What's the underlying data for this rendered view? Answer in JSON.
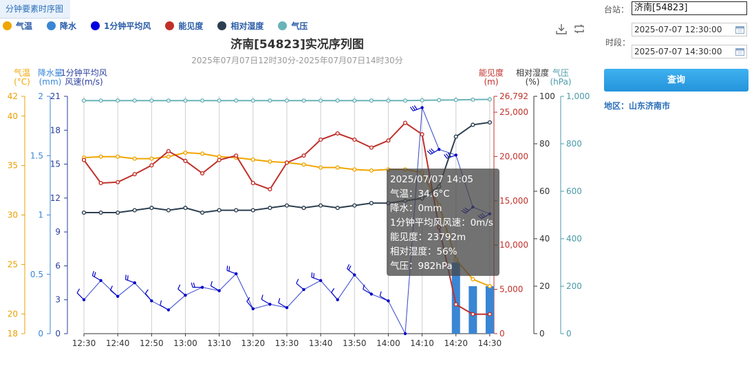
{
  "tab_label": "分钟要素时序图",
  "legend": [
    {
      "label": "气温",
      "color": "#f0a500"
    },
    {
      "label": "降水",
      "color": "#3a86d4"
    },
    {
      "label": "1分钟平均风",
      "color": "#0000e0"
    },
    {
      "label": "能见度",
      "color": "#c0302a"
    },
    {
      "label": "相对湿度",
      "color": "#2c3e50"
    },
    {
      "label": "气压",
      "color": "#6ab3b8"
    }
  ],
  "toolbar": {
    "download_icon": "download-icon",
    "refresh_icon": "refresh-icon"
  },
  "side": {
    "station_label": "台站：",
    "station_value": "济南[54823]",
    "period_label": "时段：",
    "start_time": "2025-07-07 12:30:00",
    "end_time": "2025-07-07 14:30:00",
    "query_button": "查询",
    "region": "地区：山东济南市"
  },
  "tooltip": {
    "time": "2025/07/07 14:05",
    "temp": "气温：34.6°C",
    "precip": "降水：0mm",
    "wind": "1分钟平均风风速：0m/s",
    "vis": "能见度：23792m",
    "rh": "相对湿度：56%",
    "pres": "气压：982hPa"
  },
  "chart_data": {
    "type": "line",
    "title": "济南[54823]实况序列图",
    "subtitle": "2025年07月07日12时30分-2025年07月07日14时30分",
    "categories": [
      "12:30",
      "12:35",
      "12:40",
      "12:45",
      "12:50",
      "12:55",
      "13:00",
      "13:05",
      "13:10",
      "13:15",
      "13:20",
      "13:25",
      "13:30",
      "13:35",
      "13:40",
      "13:45",
      "13:50",
      "13:55",
      "14:00",
      "14:05",
      "14:10",
      "14:15",
      "14:20",
      "14:25",
      "14:30"
    ],
    "x_tick_labels": [
      "12:30",
      "12:40",
      "12:50",
      "13:00",
      "13:10",
      "13:20",
      "13:30",
      "13:40",
      "13:50",
      "14:00",
      "14:10",
      "14:20",
      "14:30"
    ],
    "axes": {
      "temp": {
        "title": "气温",
        "unit": "(°C)",
        "range": [
          18,
          42
        ],
        "ticks": [
          "18",
          "20",
          "25",
          "30",
          "35",
          "40",
          "42"
        ],
        "tick_values": [
          18,
          20,
          25,
          30,
          35,
          40,
          42
        ],
        "color": "#f0a500"
      },
      "precip": {
        "title": "降水量",
        "unit": "(mm)",
        "range": [
          0,
          2
        ],
        "ticks": [
          "0",
          "0.5",
          "1",
          "1.5",
          "2"
        ],
        "tick_values": [
          0,
          0.5,
          1,
          1.5,
          2
        ],
        "color": "#3a86d4"
      },
      "wind": {
        "title": "1分钟平均风",
        "unit": "风速(m/s)",
        "range": [
          0,
          21
        ],
        "ticks": [
          "0",
          "3",
          "6",
          "9",
          "12",
          "15",
          "18",
          "21"
        ],
        "tick_values": [
          0,
          3,
          6,
          9,
          12,
          15,
          18,
          21
        ],
        "color": "#2a3e9e"
      },
      "vis": {
        "title": "能见度",
        "unit": "(m)",
        "range": [
          0,
          26792
        ],
        "ticks": [
          "0",
          "5,000",
          "10,000",
          "15,000",
          "20,000",
          "25,000",
          "26,792"
        ],
        "tick_values": [
          0,
          5000,
          10000,
          15000,
          20000,
          25000,
          26792
        ],
        "color": "#c0302a"
      },
      "rh": {
        "title": "相对湿度",
        "unit": "(%)",
        "range": [
          0,
          100
        ],
        "ticks": [
          "0",
          "20",
          "40",
          "60",
          "80",
          "100"
        ],
        "tick_values": [
          0,
          20,
          40,
          60,
          80,
          100
        ],
        "color": "#333333"
      },
      "pres": {
        "title": "气压",
        "unit": "(hPa)",
        "range": [
          0,
          1000
        ],
        "ticks": [
          "0",
          "200",
          "400",
          "600",
          "800",
          "1,000"
        ],
        "tick_values": [
          0,
          200,
          400,
          600,
          800,
          1000
        ],
        "color": "#4a9aa8"
      }
    },
    "series": [
      {
        "name": "气温",
        "axis": "temp",
        "kind": "line",
        "color": "#f0a500",
        "values": [
          35.8,
          35.9,
          35.9,
          35.7,
          35.7,
          35.9,
          36.3,
          36.2,
          35.9,
          35.8,
          35.6,
          35.4,
          35.3,
          35.1,
          34.8,
          34.8,
          34.6,
          34.5,
          34.6,
          34.6,
          34.3,
          31.0,
          25.5,
          23.5,
          22.8
        ]
      },
      {
        "name": "1分钟平均风",
        "axis": "wind",
        "kind": "line",
        "color": "#3344cc",
        "values": [
          3.0,
          4.7,
          3.3,
          4.5,
          2.9,
          2.1,
          3.4,
          4.1,
          3.8,
          5.3,
          2.2,
          2.6,
          2.3,
          3.9,
          4.7,
          3.0,
          5.2,
          3.5,
          2.9,
          0.0,
          20.0,
          16.3,
          15.8,
          11.2,
          10.6
        ],
        "wind_from_degrees": [
          315,
          300,
          310,
          290,
          320,
          300,
          310,
          270,
          300,
          290,
          320,
          300,
          300,
          310,
          290,
          320,
          310,
          300,
          300,
          0,
          250,
          240,
          250,
          230,
          240
        ]
      },
      {
        "name": "能见度",
        "axis": "vis",
        "kind": "line",
        "color": "#c0302a",
        "values": [
          19600,
          17000,
          17100,
          18000,
          19000,
          20600,
          19500,
          18100,
          19600,
          20100,
          17000,
          16300,
          19300,
          20100,
          21900,
          22600,
          21900,
          21000,
          21800,
          23792,
          22500,
          12000,
          3300,
          2200,
          2200
        ]
      },
      {
        "name": "相对湿度",
        "axis": "rh",
        "kind": "line",
        "color": "#2c3e50",
        "values": [
          51,
          51,
          51,
          52,
          53,
          52,
          53,
          51,
          52,
          52,
          52,
          53,
          54,
          53,
          54,
          53,
          54,
          55,
          55,
          56,
          57,
          62,
          83,
          88,
          89
        ]
      },
      {
        "name": "气压",
        "axis": "pres",
        "kind": "line",
        "color": "#6ab3b8",
        "values": [
          982,
          982,
          982,
          982,
          982,
          982,
          982,
          982,
          982,
          982,
          982,
          982,
          982,
          982,
          982,
          982,
          982,
          982,
          982,
          982,
          983,
          984,
          985,
          986,
          987
        ]
      },
      {
        "name": "降水",
        "axis": "precip",
        "kind": "bar",
        "color": "#3a86d4",
        "values": [
          0,
          0,
          0,
          0,
          0,
          0,
          0,
          0,
          0,
          0,
          0,
          0,
          0,
          0,
          0,
          0,
          0,
          0,
          0,
          0,
          0,
          0,
          0.6,
          0.4,
          0.4
        ]
      }
    ]
  }
}
